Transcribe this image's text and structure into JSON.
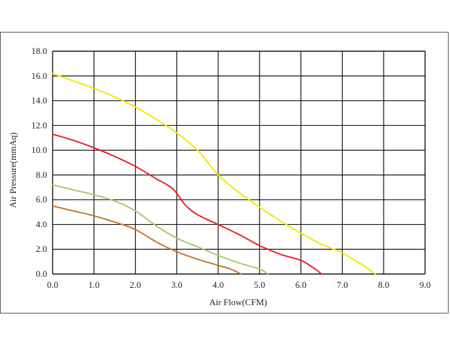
{
  "chart_data": {
    "type": "line",
    "title": "",
    "xlabel": "Air Flow(CFM)",
    "ylabel": "Air Pressure(mmAq)",
    "xlim": [
      0,
      9
    ],
    "ylim": [
      0,
      18
    ],
    "grid": true,
    "x_ticks": [
      "0.0",
      "1.0",
      "2.0",
      "3.0",
      "4.0",
      "5.0",
      "6.0",
      "7.0",
      "8.0",
      "9.0"
    ],
    "y_ticks": [
      "0.0",
      "2.0",
      "4.0",
      "6.0",
      "8.0",
      "10.0",
      "12.0",
      "14.0",
      "16.0",
      "18.0"
    ],
    "series": [
      {
        "color": "#f2e800",
        "points": [
          [
            0.0,
            16.2
          ],
          [
            1.0,
            15.0
          ],
          [
            1.5,
            14.3
          ],
          [
            2.0,
            13.5
          ],
          [
            2.5,
            12.5
          ],
          [
            3.0,
            11.4
          ],
          [
            3.5,
            10.0
          ],
          [
            4.0,
            8.0
          ],
          [
            4.5,
            6.6
          ],
          [
            5.0,
            5.4
          ],
          [
            5.5,
            4.3
          ],
          [
            6.0,
            3.3
          ],
          [
            6.5,
            2.4
          ],
          [
            7.0,
            1.7
          ],
          [
            7.5,
            0.7
          ],
          [
            7.8,
            0.0
          ]
        ]
      },
      {
        "color": "#e8202a",
        "points": [
          [
            0.0,
            11.3
          ],
          [
            0.5,
            10.8
          ],
          [
            1.0,
            10.2
          ],
          [
            1.5,
            9.5
          ],
          [
            2.0,
            8.7
          ],
          [
            2.5,
            7.7
          ],
          [
            2.9,
            6.9
          ],
          [
            3.2,
            5.6
          ],
          [
            3.5,
            4.8
          ],
          [
            4.0,
            4.0
          ],
          [
            4.5,
            3.2
          ],
          [
            5.0,
            2.3
          ],
          [
            5.5,
            1.6
          ],
          [
            6.0,
            1.1
          ],
          [
            6.3,
            0.5
          ],
          [
            6.5,
            0.0
          ]
        ]
      },
      {
        "color": "#a8c86e",
        "points": [
          [
            0.0,
            7.2
          ],
          [
            0.5,
            6.8
          ],
          [
            1.0,
            6.4
          ],
          [
            1.5,
            5.9
          ],
          [
            2.0,
            5.1
          ],
          [
            2.5,
            3.9
          ],
          [
            3.0,
            2.9
          ],
          [
            3.5,
            2.2
          ],
          [
            4.0,
            1.5
          ],
          [
            4.5,
            0.9
          ],
          [
            5.0,
            0.4
          ],
          [
            5.2,
            0.0
          ]
        ]
      },
      {
        "color": "#c07838",
        "points": [
          [
            0.0,
            5.5
          ],
          [
            0.5,
            5.1
          ],
          [
            1.0,
            4.7
          ],
          [
            1.5,
            4.2
          ],
          [
            2.0,
            3.6
          ],
          [
            2.5,
            2.6
          ],
          [
            3.0,
            1.8
          ],
          [
            3.5,
            1.2
          ],
          [
            4.0,
            0.7
          ],
          [
            4.3,
            0.4
          ],
          [
            4.55,
            0.0
          ]
        ]
      }
    ]
  }
}
